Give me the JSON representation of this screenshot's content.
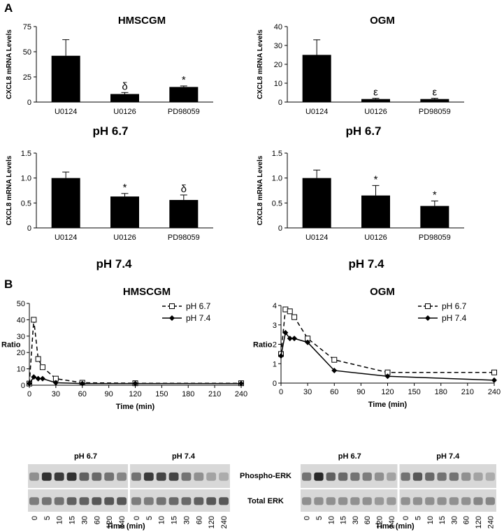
{
  "panel_labels": [
    "A",
    "B"
  ],
  "chart_data": [
    {
      "id": "a1",
      "type": "bar",
      "title": "HMSCGM",
      "xlabel": "",
      "ylabel": "CXCL8 mRNA Levels",
      "categories": [
        "U0124",
        "U0126",
        "PD98059"
      ],
      "values": [
        46,
        8,
        15
      ],
      "errors": [
        16,
        1.5,
        1
      ],
      "markers": [
        "",
        "δ",
        "*"
      ],
      "ylim": [
        0,
        75
      ],
      "yticks": [
        "0",
        "25",
        "50",
        "75"
      ],
      "grid": false
    },
    {
      "id": "a2",
      "type": "bar",
      "title": "OGM",
      "xlabel": "",
      "ylabel": "CXCL8 mRNA Levels",
      "categories": [
        "U0124",
        "U0126",
        "PD98059"
      ],
      "values": [
        25,
        1.6,
        1.6
      ],
      "errors": [
        8,
        0.4,
        0.4
      ],
      "markers": [
        "",
        "ε",
        "ε"
      ],
      "ylim": [
        0,
        40
      ],
      "yticks": [
        "0",
        "10",
        "20",
        "30",
        "40"
      ],
      "grid": false
    },
    {
      "id": "a3",
      "type": "bar",
      "title": "pH 6.7",
      "xlabel": "",
      "ylabel": "CXCL8 mRNA Levels",
      "categories": [
        "U0124",
        "U0126",
        "PD98059"
      ],
      "values": [
        1.0,
        0.63,
        0.56
      ],
      "errors": [
        0.12,
        0.06,
        0.1
      ],
      "markers": [
        "",
        "*",
        "δ"
      ],
      "ylim": [
        0,
        1.5
      ],
      "yticks": [
        "0",
        "0.5",
        "1.0",
        "1.5"
      ],
      "grid": false
    },
    {
      "id": "a4",
      "type": "bar",
      "title": "pH 6.7",
      "xlabel": "",
      "ylabel": "CXCL8 mRNA Levels",
      "categories": [
        "U0124",
        "U0126",
        "PD98059"
      ],
      "values": [
        1.0,
        0.65,
        0.44
      ],
      "errors": [
        0.16,
        0.2,
        0.1
      ],
      "markers": [
        "",
        "*",
        "*"
      ],
      "ylim": [
        0,
        1.5
      ],
      "yticks": [
        "0",
        "0.5",
        "1.0",
        "1.5"
      ],
      "grid": false
    },
    {
      "id": "b1",
      "type": "line",
      "title": "HMSCGM",
      "xlabel": "Time (min)",
      "ylabel": "Ratio",
      "ylim": [
        0,
        50
      ],
      "yticks": [
        "0",
        "10",
        "20",
        "30",
        "40",
        "50"
      ],
      "xlim": [
        0,
        240
      ],
      "xticks": [
        "0",
        "30",
        "60",
        "90",
        "120",
        "150",
        "180",
        "210",
        "240"
      ],
      "legend": "top-right",
      "grid": false,
      "series": [
        {
          "name": "pH 6.7",
          "x": [
            0,
            5,
            10,
            15,
            30,
            60,
            120,
            240
          ],
          "y": [
            1,
            40,
            16,
            11,
            4,
            1.5,
            1.2,
            1.2
          ]
        },
        {
          "name": "pH 7.4",
          "x": [
            0,
            5,
            10,
            15,
            30,
            60,
            120,
            240
          ],
          "y": [
            1,
            5,
            4,
            4,
            1.5,
            1,
            1,
            1
          ]
        }
      ]
    },
    {
      "id": "b2",
      "type": "line",
      "title": "OGM",
      "xlabel": "Time (min)",
      "ylabel": "Ratio",
      "ylim": [
        0,
        4
      ],
      "yticks": [
        "0",
        "1",
        "2",
        "3",
        "4"
      ],
      "xlim": [
        0,
        240
      ],
      "xticks": [
        "0",
        "30",
        "60",
        "90",
        "120",
        "150",
        "180",
        "210",
        "240"
      ],
      "legend": "top-right",
      "grid": false,
      "series": [
        {
          "name": "pH 6.7",
          "x": [
            0,
            5,
            10,
            15,
            30,
            60,
            120,
            240
          ],
          "y": [
            1.5,
            3.8,
            3.7,
            3.4,
            2.3,
            1.2,
            0.55,
            0.55
          ]
        },
        {
          "name": "pH 7.4",
          "x": [
            0,
            5,
            10,
            15,
            30,
            60,
            120,
            240
          ],
          "y": [
            1.4,
            2.6,
            2.3,
            2.3,
            2.1,
            0.65,
            0.35,
            0.15
          ]
        }
      ]
    }
  ],
  "row_labels": [
    "pH 6.7",
    "pH 7.4"
  ],
  "blots": {
    "left_groups": [
      "pH 6.7",
      "pH 7.4"
    ],
    "right_groups": [
      "pH 6.7",
      "pH 7.4"
    ],
    "row_labels": [
      "Phospho-ERK",
      "Total ERK"
    ],
    "lanes": [
      "0",
      "5",
      "10",
      "15",
      "30",
      "60",
      "120",
      "240"
    ],
    "xlabel": "Time (min)",
    "band_intensity": {
      "left_phospho_67": [
        0.35,
        0.85,
        0.8,
        0.85,
        0.6,
        0.55,
        0.5,
        0.4
      ],
      "left_phospho_74": [
        0.5,
        0.8,
        0.75,
        0.75,
        0.5,
        0.35,
        0.25,
        0.2
      ],
      "left_total_67": [
        0.45,
        0.5,
        0.5,
        0.6,
        0.6,
        0.65,
        0.65,
        0.65
      ],
      "left_total_74": [
        0.45,
        0.45,
        0.5,
        0.55,
        0.55,
        0.6,
        0.65,
        0.65
      ],
      "right_phospho_67": [
        0.5,
        0.9,
        0.6,
        0.55,
        0.5,
        0.45,
        0.35,
        0.25
      ],
      "right_phospho_74": [
        0.5,
        0.65,
        0.55,
        0.5,
        0.5,
        0.35,
        0.25,
        0.2
      ],
      "right_total_67": [
        0.35,
        0.35,
        0.35,
        0.35,
        0.35,
        0.35,
        0.3,
        0.3
      ],
      "right_total_74": [
        0.35,
        0.35,
        0.35,
        0.35,
        0.35,
        0.35,
        0.4,
        0.4
      ]
    }
  }
}
